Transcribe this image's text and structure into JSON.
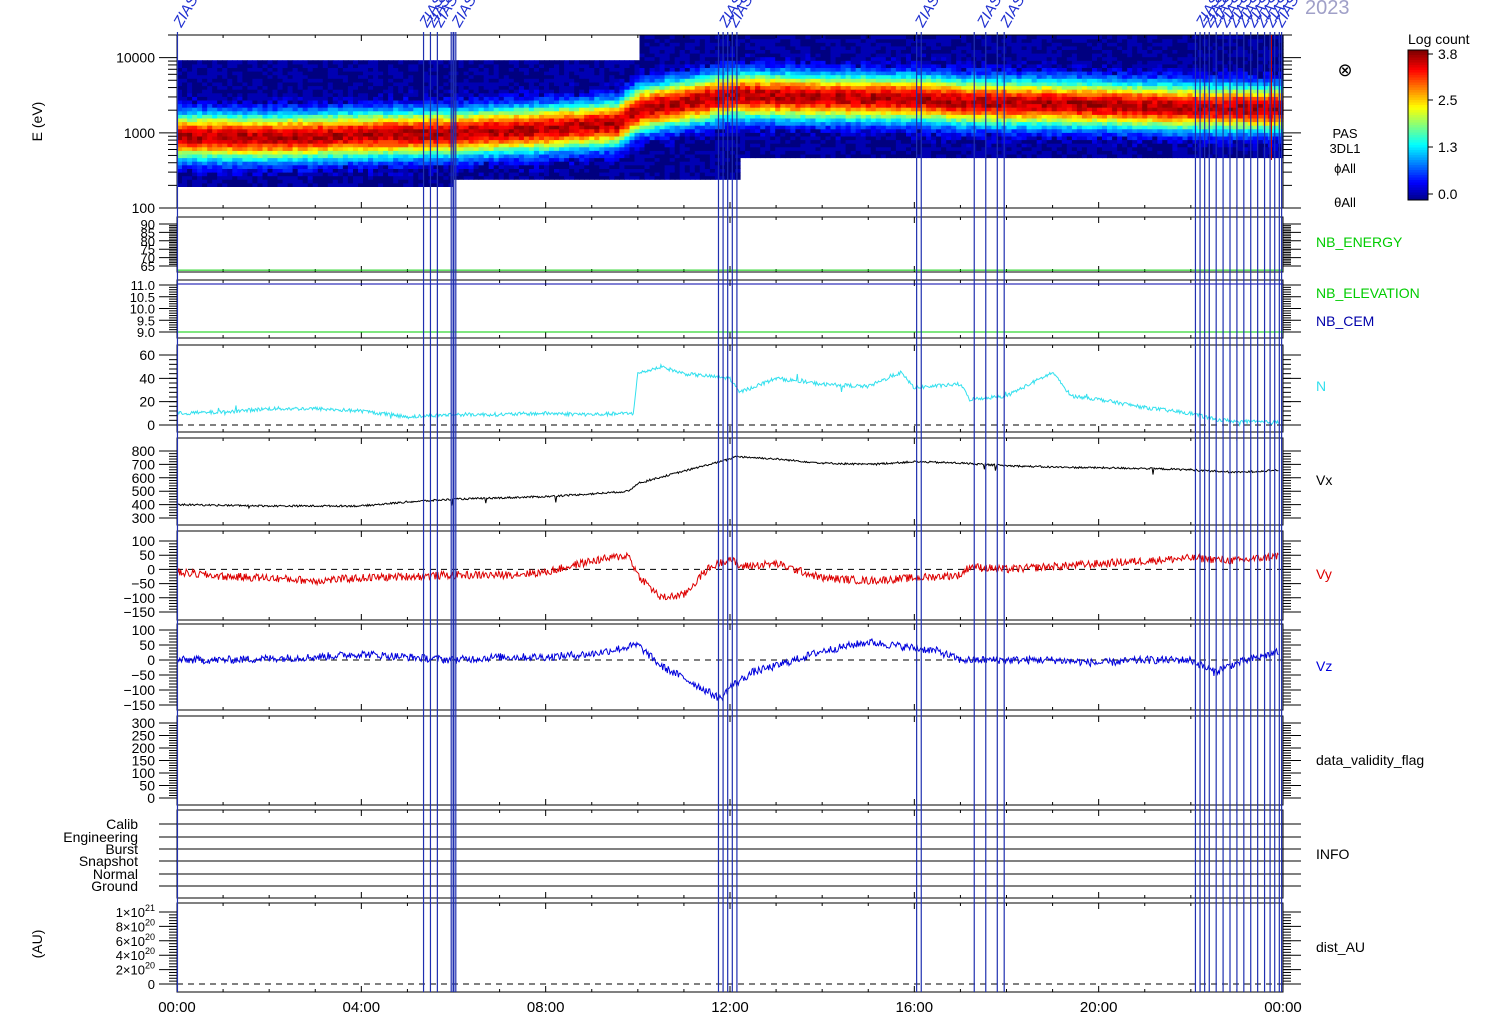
{
  "header": {
    "year_fragment": "2023"
  },
  "x_axis": {
    "ticks": [
      "00:00",
      "04:00",
      "08:00",
      "12:00",
      "16:00",
      "20:00",
      "00:00"
    ],
    "range_hours": [
      0,
      24
    ]
  },
  "event_marker": {
    "label": "ZIAS"
  },
  "colorbar": {
    "title": "Log count",
    "ticks": [
      "3.8",
      "2.5",
      "1.3",
      "0.0"
    ],
    "range": [
      0.0,
      3.8
    ]
  },
  "chart_data": [
    {
      "type": "heatmap",
      "ylabel": "E (eV)",
      "y_log": true,
      "ylim": [
        100,
        20000
      ],
      "y_ticks": [
        "10000",
        "1000",
        "100"
      ],
      "right_labels": [
        "PAS",
        "3DL1",
        "ϕAll",
        "θAll"
      ],
      "symbol": "⊗",
      "peak_energy_ev": [
        {
          "t": 0,
          "e": 900
        },
        {
          "t": 2,
          "e": 880
        },
        {
          "t": 4,
          "e": 950
        },
        {
          "t": 6,
          "e": 1000
        },
        {
          "t": 8,
          "e": 1150
        },
        {
          "t": 9.5,
          "e": 1350
        },
        {
          "t": 10,
          "e": 2100
        },
        {
          "t": 11,
          "e": 2600
        },
        {
          "t": 12,
          "e": 3200
        },
        {
          "t": 14,
          "e": 3000
        },
        {
          "t": 16,
          "e": 2900
        },
        {
          "t": 17,
          "e": 2600
        },
        {
          "t": 20,
          "e": 2400
        },
        {
          "t": 22,
          "e": 2200
        },
        {
          "t": 24,
          "e": 2100
        }
      ]
    },
    {
      "type": "line",
      "label": "NB_ENERGY",
      "color": "#00cc00",
      "y_ticks": [
        "90",
        "85",
        "80",
        "75",
        "70",
        "65"
      ],
      "ylim": [
        63,
        92
      ],
      "value": 64
    },
    {
      "type": "line",
      "labels": [
        "NB_ELEVATION",
        "NB_CEM"
      ],
      "colors": [
        "#00cc00",
        "#0000aa"
      ],
      "y_ticks": [
        "11.0",
        "10.5",
        "10.0",
        "9.5",
        "9.0"
      ],
      "ylim": [
        8.9,
        11.1
      ]
    },
    {
      "type": "line",
      "label": "N",
      "color": "#33e0ee",
      "y_ticks": [
        "60",
        "40",
        "20",
        "0"
      ],
      "ylim": [
        0,
        60
      ],
      "points": [
        [
          0,
          10
        ],
        [
          1,
          11
        ],
        [
          2,
          14
        ],
        [
          3,
          14
        ],
        [
          4,
          12
        ],
        [
          5,
          7
        ],
        [
          6,
          9
        ],
        [
          7,
          9
        ],
        [
          8,
          10
        ],
        [
          9,
          9
        ],
        [
          9.9,
          10
        ],
        [
          10,
          44
        ],
        [
          10.5,
          50
        ],
        [
          11,
          44
        ],
        [
          12,
          40
        ],
        [
          12.2,
          28
        ],
        [
          13,
          40
        ],
        [
          14,
          35
        ],
        [
          15,
          33
        ],
        [
          15.7,
          45
        ],
        [
          16,
          32
        ],
        [
          17,
          35
        ],
        [
          17.2,
          22
        ],
        [
          18,
          25
        ],
        [
          19,
          45
        ],
        [
          19.4,
          25
        ],
        [
          20,
          22
        ],
        [
          21,
          15
        ],
        [
          22,
          10
        ],
        [
          22.5,
          5
        ],
        [
          23,
          3
        ],
        [
          24,
          2
        ]
      ]
    },
    {
      "type": "line",
      "label": "Vx",
      "color": "#000000",
      "y_ticks": [
        "800",
        "700",
        "600",
        "500",
        "400",
        "300"
      ],
      "ylim": [
        270,
        830
      ],
      "points": [
        [
          0,
          400
        ],
        [
          1,
          395
        ],
        [
          2,
          390
        ],
        [
          3,
          390
        ],
        [
          4,
          390
        ],
        [
          5,
          420
        ],
        [
          6,
          440
        ],
        [
          7,
          450
        ],
        [
          8,
          460
        ],
        [
          9,
          480
        ],
        [
          9.8,
          500
        ],
        [
          10,
          560
        ],
        [
          11,
          650
        ],
        [
          12,
          740
        ],
        [
          12.1,
          760
        ],
        [
          13,
          740
        ],
        [
          14,
          710
        ],
        [
          15,
          700
        ],
        [
          16,
          720
        ],
        [
          17,
          710
        ],
        [
          18,
          690
        ],
        [
          19,
          680
        ],
        [
          20,
          675
        ],
        [
          21,
          670
        ],
        [
          22,
          660
        ],
        [
          23,
          640
        ],
        [
          24,
          660
        ]
      ]
    },
    {
      "type": "line",
      "label": "Vy",
      "color": "#dd0000",
      "y_ticks": [
        "100",
        "50",
        "0",
        "−50",
        "−100",
        "−150"
      ],
      "ylim": [
        -170,
        120
      ],
      "points": [
        [
          0,
          -10
        ],
        [
          1,
          -25
        ],
        [
          2,
          -30
        ],
        [
          3,
          -40
        ],
        [
          4,
          -30
        ],
        [
          5,
          -25
        ],
        [
          6,
          -20
        ],
        [
          7,
          -20
        ],
        [
          8,
          -10
        ],
        [
          9,
          30
        ],
        [
          9.8,
          50
        ],
        [
          10,
          -20
        ],
        [
          10.5,
          -100
        ],
        [
          11,
          -90
        ],
        [
          11.5,
          0
        ],
        [
          12,
          40
        ],
        [
          12.2,
          10
        ],
        [
          13,
          20
        ],
        [
          14,
          -30
        ],
        [
          15,
          -40
        ],
        [
          16,
          -30
        ],
        [
          17,
          -20
        ],
        [
          17.2,
          10
        ],
        [
          18,
          0
        ],
        [
          19,
          10
        ],
        [
          20,
          20
        ],
        [
          21,
          30
        ],
        [
          22,
          40
        ],
        [
          23,
          30
        ],
        [
          24,
          50
        ]
      ]
    },
    {
      "type": "line",
      "label": "Vz",
      "color": "#0000dd",
      "y_ticks": [
        "100",
        "50",
        "0",
        "−50",
        "−100",
        "−150"
      ],
      "ylim": [
        -170,
        120
      ],
      "points": [
        [
          0,
          0
        ],
        [
          1,
          0
        ],
        [
          2,
          5
        ],
        [
          3,
          10
        ],
        [
          4,
          20
        ],
        [
          5,
          10
        ],
        [
          6,
          0
        ],
        [
          7,
          10
        ],
        [
          8,
          10
        ],
        [
          9,
          20
        ],
        [
          10,
          50
        ],
        [
          10.5,
          -20
        ],
        [
          11,
          -60
        ],
        [
          11.8,
          -130
        ],
        [
          12,
          -90
        ],
        [
          12.5,
          -40
        ],
        [
          13,
          -20
        ],
        [
          14,
          30
        ],
        [
          15,
          60
        ],
        [
          16,
          40
        ],
        [
          16.5,
          30
        ],
        [
          17,
          0
        ],
        [
          18,
          0
        ],
        [
          19,
          0
        ],
        [
          20,
          -10
        ],
        [
          21,
          0
        ],
        [
          22,
          0
        ],
        [
          22.5,
          -40
        ],
        [
          23,
          -10
        ],
        [
          24,
          30
        ]
      ]
    },
    {
      "type": "line",
      "label": "data_validity_flag",
      "y_ticks": [
        "300",
        "250",
        "200",
        "150",
        "100",
        "50",
        "0"
      ],
      "ylim": [
        0,
        300
      ]
    },
    {
      "type": "line",
      "label": "INFO",
      "categories": [
        "Calib",
        "Engineering",
        "Burst",
        "Snapshot",
        "Normal",
        "Ground"
      ]
    },
    {
      "type": "line",
      "label": "dist_AU",
      "ylabel": "(AU)",
      "y_ticks": [
        {
          "mant": "1×10",
          "exp": "21"
        },
        {
          "mant": "8×10",
          "exp": "20"
        },
        {
          "mant": "6×10",
          "exp": "20"
        },
        {
          "mant": "4×10",
          "exp": "20"
        },
        {
          "mant": "2×10",
          "exp": "20"
        },
        {
          "mant": "0",
          "exp": ""
        }
      ],
      "ylim": [
        0,
        1.1e+21
      ]
    }
  ]
}
